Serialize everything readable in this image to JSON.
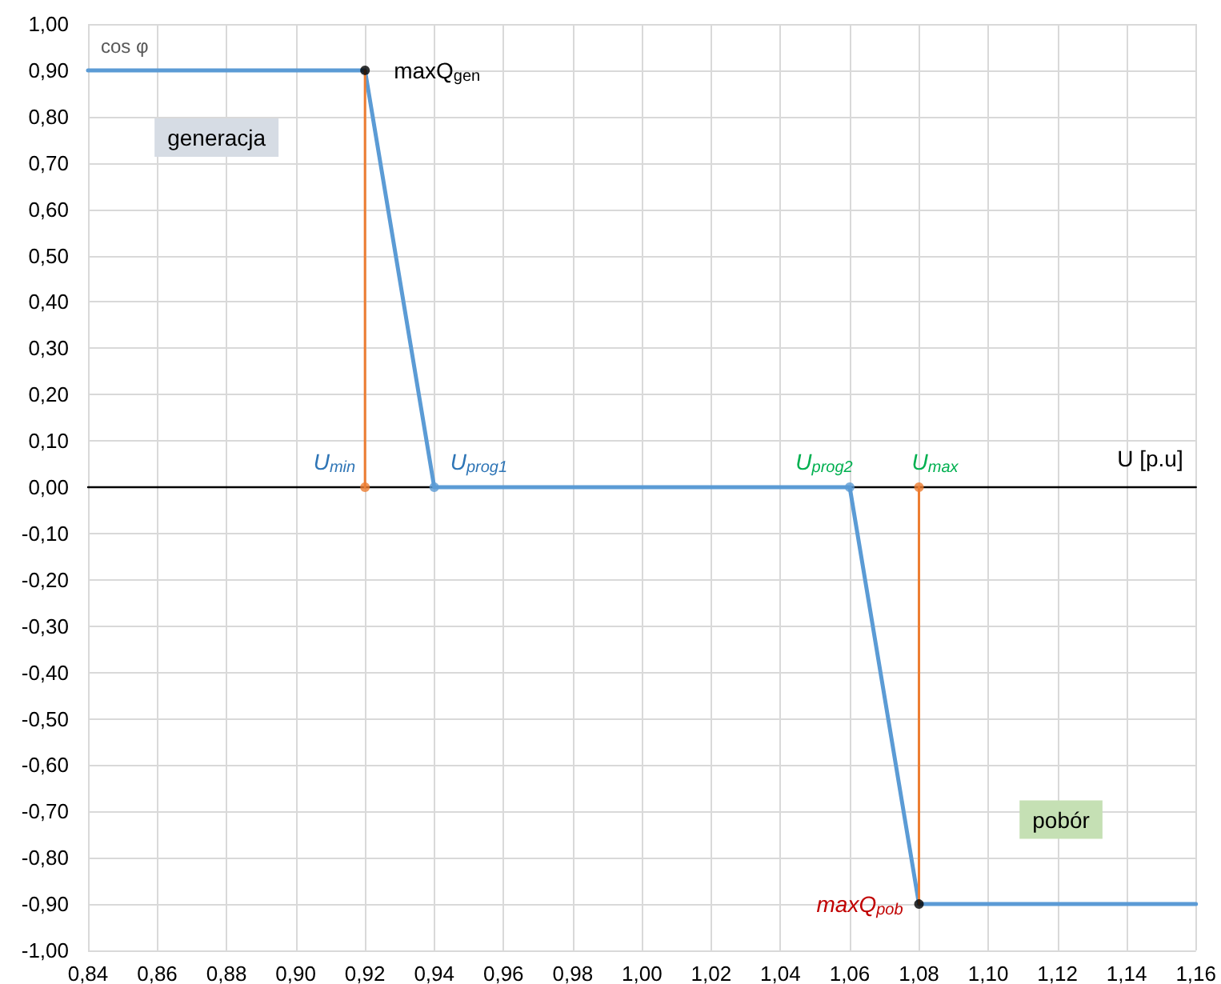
{
  "chart_data": {
    "type": "line",
    "xlabel": "U [p.u]",
    "ylabel": "cos φ",
    "grid": true,
    "line_style": "solid",
    "xlim": [
      0.84,
      1.16
    ],
    "xticks": [
      {
        "value": 0.84,
        "label": "0,84"
      },
      {
        "value": 0.86,
        "label": "0,86"
      },
      {
        "value": 0.88,
        "label": "0,88"
      },
      {
        "value": 0.9,
        "label": "0,90"
      },
      {
        "value": 0.92,
        "label": "0,92"
      },
      {
        "value": 0.94,
        "label": "0,94"
      },
      {
        "value": 0.96,
        "label": "0,96"
      },
      {
        "value": 0.98,
        "label": "0,98"
      },
      {
        "value": 1.0,
        "label": "1,00"
      },
      {
        "value": 1.02,
        "label": "1,02"
      },
      {
        "value": 1.04,
        "label": "1,04"
      },
      {
        "value": 1.06,
        "label": "1,06"
      },
      {
        "value": 1.08,
        "label": "1,08"
      },
      {
        "value": 1.1,
        "label": "1,10"
      },
      {
        "value": 1.12,
        "label": "1,12"
      },
      {
        "value": 1.14,
        "label": "1,14"
      },
      {
        "value": 1.16,
        "label": "1,16"
      }
    ],
    "ylim": [
      -1.0,
      1.0
    ],
    "yticks": [
      {
        "value": -1.0,
        "label": "-1,00"
      },
      {
        "value": -0.9,
        "label": "-0,90"
      },
      {
        "value": -0.8,
        "label": "-0,80"
      },
      {
        "value": -0.7,
        "label": "-0,70"
      },
      {
        "value": -0.6,
        "label": "-0,60"
      },
      {
        "value": -0.5,
        "label": "-0,50"
      },
      {
        "value": -0.4,
        "label": "-0,40"
      },
      {
        "value": -0.3,
        "label": "-0,30"
      },
      {
        "value": -0.2,
        "label": "-0,20"
      },
      {
        "value": -0.1,
        "label": "-0,10"
      },
      {
        "value": 0.0,
        "label": "0,00"
      },
      {
        "value": 0.1,
        "label": "0,10"
      },
      {
        "value": 0.2,
        "label": "0,20"
      },
      {
        "value": 0.3,
        "label": "0,30"
      },
      {
        "value": 0.4,
        "label": "0,40"
      },
      {
        "value": 0.5,
        "label": "0,50"
      },
      {
        "value": 0.6,
        "label": "0,60"
      },
      {
        "value": 0.7,
        "label": "0,70"
      },
      {
        "value": 0.8,
        "label": "0,80"
      },
      {
        "value": 0.9,
        "label": "0,90"
      },
      {
        "value": 1.0,
        "label": "1,00"
      }
    ],
    "series": [
      {
        "x": [
          0.84,
          0.92,
          0.94,
          1.06,
          1.08,
          1.16
        ],
        "values": [
          0.9,
          0.9,
          0,
          0,
          -0.9,
          -0.9
        ],
        "color": "#5b9bd5",
        "marker": "none"
      },
      {
        "x": [
          0.92,
          0.92
        ],
        "values": [
          0,
          0.9
        ],
        "color": "#ed7d31",
        "marker": "none"
      },
      {
        "x": [
          1.08,
          1.08
        ],
        "values": [
          0,
          -0.9
        ],
        "color": "#ed7d31",
        "marker": "none"
      },
      {
        "type": "scatter",
        "x": [
          0.94,
          1.06
        ],
        "values": [
          0,
          0
        ],
        "color": "#5b9bd5",
        "marker": "circle"
      },
      {
        "type": "scatter",
        "x": [
          0.92,
          1.08
        ],
        "values": [
          0,
          0
        ],
        "color": "#ed7d31",
        "marker": "circle"
      },
      {
        "type": "scatter",
        "x": [
          0.92,
          1.08
        ],
        "values": [
          0.9,
          -0.9
        ],
        "color": "#000000",
        "marker": "circle"
      }
    ],
    "annotations": [
      {
        "text": "maxQ$_{gen}$",
        "x": 0.92,
        "y": 0.9
      },
      "generacja",
      {
        "text": "U$_{min}$",
        "x": 0.92,
        "y": 0
      },
      {
        "text": "U$_{prog1}$",
        "x": 0.94,
        "y": 0
      },
      {
        "text": "U$_{prog2}$",
        "x": 1.06,
        "y": 0
      },
      {
        "text": "U$_{max}$",
        "x": 1.08,
        "y": 0
      },
      {
        "text": "maxQ$_{pob}$",
        "x": 1.08,
        "y": -0.9
      },
      "pobór"
    ]
  }
}
